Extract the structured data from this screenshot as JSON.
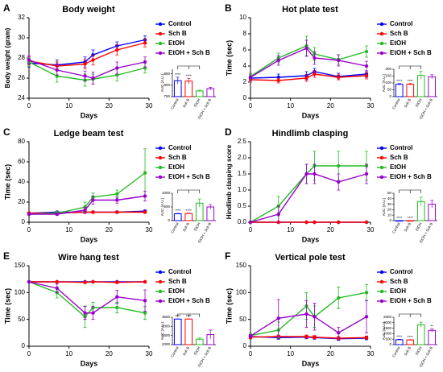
{
  "chart_data": [
    {
      "type": "line",
      "panel": "A",
      "title": "Body weight",
      "x_label": "Days",
      "y_label": "Body weight (gram)",
      "x": [
        0,
        7,
        14,
        16,
        22,
        29
      ],
      "xlim": [
        0,
        30
      ],
      "xticks": [
        0,
        10,
        20,
        30
      ],
      "ylim": [
        24,
        32
      ],
      "yticks": [
        24,
        26,
        28,
        30,
        32
      ],
      "series": [
        {
          "name": "Control",
          "color": "#0000ff",
          "values": [
            27.5,
            27.3,
            27.6,
            28.3,
            29.2,
            29.8
          ],
          "errors": [
            0.4,
            0.5,
            0.5,
            0.5,
            0.4,
            0.4
          ]
        },
        {
          "name": "Sch B",
          "color": "#ff0000",
          "values": [
            27.7,
            27.2,
            27.4,
            27.8,
            28.8,
            29.5
          ],
          "errors": [
            0.4,
            0.4,
            0.5,
            0.5,
            0.5,
            0.4
          ]
        },
        {
          "name": "EtOH",
          "color": "#22bb22",
          "values": [
            27.6,
            26.2,
            25.8,
            25.9,
            26.3,
            27.0
          ],
          "errors": [
            0.4,
            0.6,
            0.6,
            0.5,
            0.6,
            0.5
          ]
        },
        {
          "name": "EtOH + Sch B",
          "color": "#9900cc",
          "values": [
            27.8,
            26.8,
            26.2,
            26.0,
            27.0,
            27.6
          ],
          "errors": [
            0.4,
            0.5,
            0.5,
            0.6,
            0.6,
            0.5
          ]
        }
      ],
      "inset": {
        "type": "bar",
        "y_label": "AUC (A.U.)",
        "ylim": [
          750,
          870
        ],
        "yticks": [
          750,
          800,
          850
        ],
        "values": [
          820,
          818,
          775,
          785
        ],
        "errors": [
          15,
          12,
          3,
          6
        ],
        "significance": [
          "****",
          "****",
          null,
          null
        ]
      }
    },
    {
      "type": "line",
      "panel": "B",
      "title": "Hot plate test",
      "x_label": "Days",
      "y_label": "Time (sec)",
      "x": [
        0,
        7,
        14,
        16,
        22,
        29
      ],
      "xlim": [
        0,
        30
      ],
      "xticks": [
        0,
        10,
        20,
        30
      ],
      "ylim": [
        0,
        10
      ],
      "yticks": [
        0,
        2,
        4,
        6,
        8,
        10
      ],
      "series": [
        {
          "name": "Control",
          "color": "#0000ff",
          "values": [
            2.5,
            2.6,
            2.8,
            3.3,
            2.7,
            3.0
          ],
          "errors": [
            0.3,
            0.4,
            0.5,
            0.4,
            0.4,
            0.4
          ]
        },
        {
          "name": "Sch B",
          "color": "#ff0000",
          "values": [
            2.3,
            2.2,
            2.5,
            3.0,
            2.6,
            2.8
          ],
          "errors": [
            0.3,
            0.3,
            0.4,
            0.4,
            0.3,
            0.4
          ]
        },
        {
          "name": "EtOH",
          "color": "#22bb22",
          "values": [
            2.7,
            5.0,
            6.5,
            5.5,
            4.8,
            5.8
          ],
          "errors": [
            0.4,
            0.6,
            1.2,
            0.8,
            0.6,
            0.7
          ]
        },
        {
          "name": "EtOH + Sch B",
          "color": "#9900cc",
          "values": [
            2.6,
            4.7,
            6.2,
            5.0,
            4.7,
            4.0
          ],
          "errors": [
            0.4,
            0.6,
            1.0,
            0.8,
            0.7,
            0.6
          ]
        }
      ],
      "inset": {
        "type": "bar",
        "y_label": "AUC (A.U.)",
        "ylim": [
          0,
          200
        ],
        "yticks": [
          0,
          50,
          100,
          150,
          200
        ],
        "values": [
          90,
          90,
          155,
          145
        ],
        "errors": [
          5,
          6,
          30,
          15
        ],
        "significance": [
          "****",
          "****",
          null,
          null
        ]
      }
    },
    {
      "type": "line",
      "panel": "C",
      "title": "Ledge beam test",
      "x_label": "Days",
      "y_label": "Time (sec)",
      "x": [
        0,
        7,
        14,
        16,
        22,
        29
      ],
      "xlim": [
        0,
        30
      ],
      "xticks": [
        0,
        10,
        20,
        30
      ],
      "ylim": [
        0,
        80
      ],
      "yticks": [
        0,
        20,
        40,
        60,
        80
      ],
      "series": [
        {
          "name": "Control",
          "color": "#0000ff",
          "values": [
            9,
            10,
            10,
            10,
            10,
            11
          ],
          "errors": [
            1,
            1,
            1,
            1,
            1,
            1
          ]
        },
        {
          "name": "Sch B",
          "color": "#ff0000",
          "values": [
            9,
            9,
            10,
            10,
            10,
            10
          ],
          "errors": [
            1,
            1,
            1,
            1,
            1,
            1
          ]
        },
        {
          "name": "EtOH",
          "color": "#22bb22",
          "values": [
            8,
            9,
            15,
            25,
            28,
            49
          ],
          "errors": [
            1,
            2,
            5,
            4,
            4,
            24
          ]
        },
        {
          "name": "EtOH + Sch B",
          "color": "#9900cc",
          "values": [
            8,
            8,
            12,
            22,
            22,
            26
          ],
          "errors": [
            1,
            1,
            3,
            4,
            3,
            5
          ]
        }
      ],
      "inset": {
        "type": "bar",
        "y_label": "AUC (A.U.)",
        "ylim": [
          0,
          1000
        ],
        "yticks": [
          0,
          500,
          1000
        ],
        "values": [
          250,
          260,
          640,
          500
        ],
        "errors": [
          15,
          15,
          150,
          90
        ],
        "significance": [
          "****",
          "****",
          null,
          null
        ]
      }
    },
    {
      "type": "line",
      "panel": "D",
      "title": "Hindlimb clasping",
      "x_label": "Days",
      "y_label": "Hindlimb clasping score",
      "x": [
        0,
        7,
        14,
        16,
        22,
        29
      ],
      "xlim": [
        0,
        30
      ],
      "xticks": [
        0,
        10,
        20,
        30
      ],
      "ylim": [
        0,
        2.5
      ],
      "yticks": [
        {
          "value": 0,
          "label": "0.0"
        },
        0.5,
        {
          "value": 1,
          "label": "1.0"
        },
        1.5,
        {
          "value": 2,
          "label": "2.0"
        },
        2.5
      ],
      "series": [
        {
          "name": "Control",
          "color": "#0000ff",
          "values": [
            0,
            0,
            0,
            0,
            0,
            0
          ],
          "errors": [
            0,
            0,
            0,
            0,
            0,
            0
          ]
        },
        {
          "name": "Sch B",
          "color": "#ff0000",
          "values": [
            0,
            0,
            0,
            0,
            0,
            0
          ],
          "errors": [
            0,
            0,
            0,
            0,
            0,
            0
          ]
        },
        {
          "name": "EtOH",
          "color": "#22bb22",
          "values": [
            0,
            0.5,
            1.5,
            1.75,
            1.75,
            1.75
          ],
          "errors": [
            0,
            0.3,
            0.3,
            0.45,
            0.45,
            0.45
          ]
        },
        {
          "name": "EtOH + Sch B",
          "color": "#9900cc",
          "values": [
            0,
            0.25,
            1.5,
            1.5,
            1.25,
            1.5
          ],
          "errors": [
            0,
            0.25,
            0.3,
            0.3,
            0.25,
            0.3
          ]
        }
      ],
      "inset": {
        "type": "bar",
        "y_label": "AUC (A.U.)",
        "ylim": [
          0,
          50
        ],
        "yticks": [
          0,
          10,
          20,
          30,
          40,
          50
        ],
        "values": [
          0,
          0,
          35,
          30
        ],
        "errors": [
          0,
          0,
          8,
          7
        ],
        "significance": [
          "****",
          "****",
          null,
          null
        ]
      }
    },
    {
      "type": "line",
      "panel": "E",
      "title": "Wire hang test",
      "x_label": "Days",
      "y_label": "Time (sec)",
      "x": [
        0,
        7,
        14,
        16,
        22,
        29
      ],
      "xlim": [
        0,
        30
      ],
      "xticks": [
        0,
        10,
        20,
        30
      ],
      "ylim": [
        0,
        150
      ],
      "yticks": [
        0,
        50,
        100,
        150
      ],
      "series": [
        {
          "name": "Control",
          "color": "#0000ff",
          "values": [
            120,
            120,
            120,
            120,
            120,
            120
          ],
          "errors": [
            0,
            0,
            0,
            0,
            0,
            0
          ]
        },
        {
          "name": "Sch B",
          "color": "#ff0000",
          "values": [
            120,
            120,
            119,
            120,
            119,
            120
          ],
          "errors": [
            0,
            1,
            2,
            1,
            2,
            1
          ]
        },
        {
          "name": "EtOH",
          "color": "#22bb22",
          "values": [
            120,
            100,
            55,
            72,
            72,
            62
          ],
          "errors": [
            0,
            10,
            20,
            10,
            10,
            12
          ]
        },
        {
          "name": "EtOH + Sch B",
          "color": "#9900cc",
          "values": [
            120,
            108,
            62,
            62,
            92,
            85
          ],
          "errors": [
            0,
            8,
            12,
            12,
            12,
            20
          ]
        }
      ],
      "inset": {
        "type": "bar",
        "y_label": "AUC (A.U.)",
        "ylim": [
          2000,
          3500
        ],
        "yticks": [
          2000,
          2500,
          3000,
          3500
        ],
        "values": [
          3400,
          3400,
          2300,
          2550
        ],
        "errors": [
          10,
          15,
          60,
          250
        ],
        "significance": [
          "****",
          "****",
          null,
          null
        ]
      }
    },
    {
      "type": "line",
      "panel": "F",
      "title": "Vertical pole test",
      "x_label": "Days",
      "y_label": "Time (sec)",
      "x": [
        0,
        7,
        14,
        16,
        22,
        29
      ],
      "xlim": [
        0,
        30
      ],
      "xticks": [
        0,
        10,
        20,
        30
      ],
      "ylim": [
        0,
        150
      ],
      "yticks": [
        0,
        50,
        100,
        150
      ],
      "series": [
        {
          "name": "Control",
          "color": "#0000ff",
          "values": [
            18,
            16,
            17,
            16,
            14,
            15
          ],
          "errors": [
            3,
            3,
            3,
            3,
            3,
            3
          ]
        },
        {
          "name": "Sch B",
          "color": "#ff0000",
          "values": [
            17,
            18,
            18,
            17,
            15,
            16
          ],
          "errors": [
            3,
            3,
            3,
            3,
            3,
            3
          ]
        },
        {
          "name": "EtOH",
          "color": "#22bb22",
          "values": [
            20,
            30,
            75,
            55,
            90,
            100
          ],
          "errors": [
            3,
            15,
            25,
            20,
            20,
            15
          ]
        },
        {
          "name": "EtOH + Sch B",
          "color": "#9900cc",
          "values": [
            19,
            52,
            60,
            55,
            25,
            55
          ],
          "errors": [
            3,
            35,
            25,
            25,
            10,
            30
          ]
        }
      ],
      "inset": {
        "type": "bar",
        "y_label": "AUC (A.U.)",
        "ylim": [
          0,
          2500
        ],
        "yticks": [
          0,
          500,
          1000,
          1500,
          2000,
          2500
        ],
        "values": [
          450,
          430,
          1800,
          1300
        ],
        "errors": [
          40,
          30,
          250,
          150
        ],
        "significance": [
          "****",
          "****",
          null,
          "**"
        ]
      }
    }
  ]
}
